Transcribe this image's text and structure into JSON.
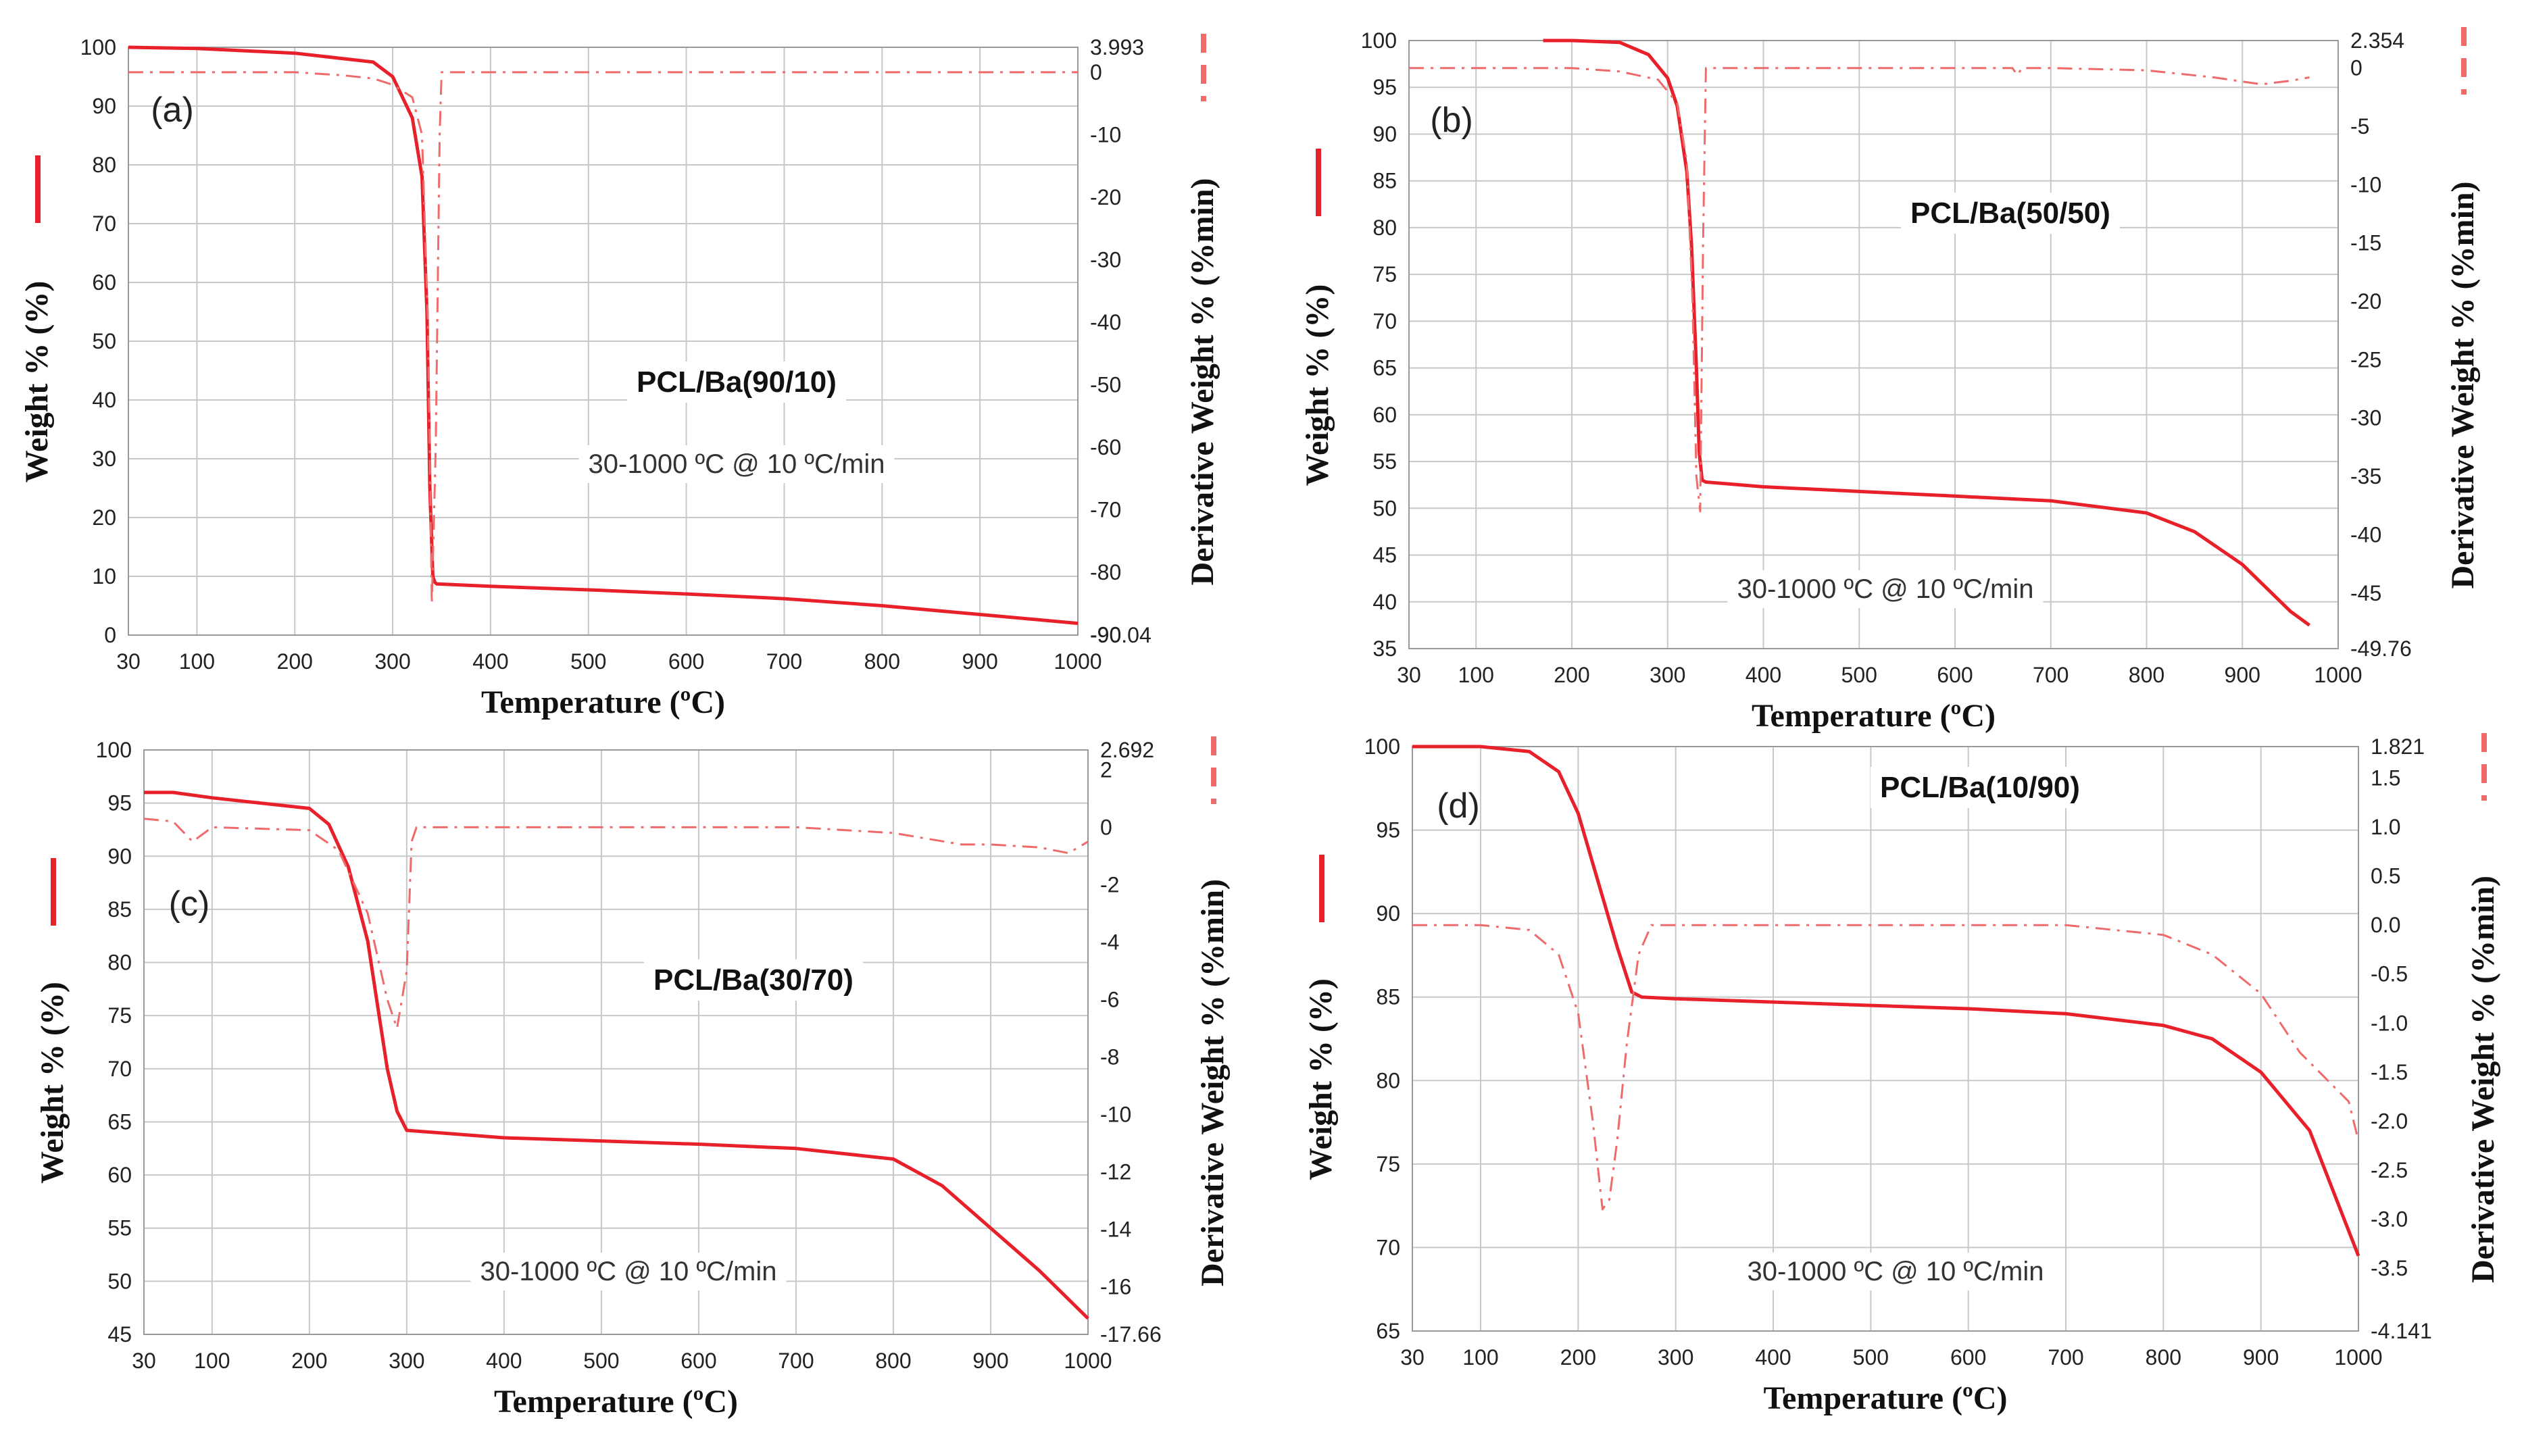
{
  "figure": {
    "colors": {
      "weight": "#e8202a",
      "derivative": "#ef6a6a",
      "grid": "#c8c8c8",
      "text": "#222222"
    }
  },
  "chart_data": [
    {
      "type": "line",
      "panel_label": "(a)",
      "title": "PCL/Ba(90/10)",
      "annotation": "30-1000 ºC @ 10 ºC/min",
      "xlabel": "Temperature (ºC)",
      "ylabel": "Weight % (%)",
      "y2label": "Derivative Weight % (%min)",
      "xlim": [
        30,
        1000
      ],
      "x_ticks": [
        "30",
        "100",
        "200",
        "300",
        "400",
        "500",
        "600",
        "700",
        "800",
        "900",
        "1000"
      ],
      "ylim": [
        0,
        100
      ],
      "y_ticks": [
        "0",
        "10",
        "20",
        "30",
        "40",
        "50",
        "60",
        "70",
        "80",
        "90",
        "100"
      ],
      "y2lim": [
        -90.04,
        3.993
      ],
      "y2_ticks": [
        "3.993",
        "0",
        "-10",
        "-20",
        "-30",
        "-40",
        "-50",
        "-60",
        "-70",
        "-80",
        "-90",
        "-90.04"
      ],
      "series": [
        {
          "name": "Weight %",
          "axis": "left",
          "style": "solid",
          "x": [
            30,
            100,
            200,
            280,
            300,
            320,
            330,
            335,
            338,
            341,
            343,
            345,
            400,
            500,
            600,
            700,
            800,
            900,
            1000
          ],
          "y": [
            100,
            99.8,
            99,
            97.5,
            95,
            88,
            78,
            55,
            25,
            10,
            9,
            8.7,
            8.3,
            7.7,
            7,
            6.2,
            5,
            3.5,
            2
          ]
        },
        {
          "name": "Derivative Weight %",
          "axis": "right",
          "style": "dashed",
          "x": [
            30,
            200,
            250,
            280,
            300,
            320,
            330,
            336,
            340,
            344,
            348,
            350,
            400,
            500,
            600,
            700,
            800,
            900,
            1000
          ],
          "y": [
            0,
            0,
            -0.5,
            -1,
            -2,
            -4,
            -10,
            -40,
            -85,
            -60,
            -10,
            0,
            0,
            0,
            0,
            0,
            0,
            0,
            0
          ]
        }
      ]
    },
    {
      "type": "line",
      "panel_label": "(b)",
      "title": "PCL/Ba(50/50)",
      "annotation": "30-1000 ºC @ 10 ºC/min",
      "xlabel": "Temperature (ºC)",
      "ylabel": "Weight % (%)",
      "y2label": "Derivative Weight % (%min)",
      "xlim": [
        30,
        1000
      ],
      "x_ticks": [
        "30",
        "100",
        "200",
        "300",
        "400",
        "500",
        "600",
        "700",
        "800",
        "900",
        "1000"
      ],
      "ylim": [
        35,
        100
      ],
      "y_ticks": [
        "35",
        "40",
        "45",
        "50",
        "55",
        "60",
        "65",
        "70",
        "75",
        "80",
        "85",
        "90",
        "95",
        "100"
      ],
      "y2lim": [
        -49.76,
        2.354
      ],
      "y2_ticks": [
        "2.354",
        "0",
        "-5",
        "-10",
        "-15",
        "-20",
        "-25",
        "-30",
        "-35",
        "-40",
        "-45",
        "-49.76"
      ],
      "series": [
        {
          "name": "Weight %",
          "axis": "left",
          "style": "solid",
          "x": [
            170,
            200,
            250,
            280,
            300,
            310,
            320,
            325,
            330,
            333,
            336,
            340,
            400,
            500,
            600,
            700,
            800,
            850,
            900,
            950,
            970
          ],
          "y": [
            100,
            100,
            99.8,
            98.5,
            96,
            93,
            86,
            78,
            65,
            56,
            53,
            52.8,
            52.3,
            51.8,
            51.3,
            50.8,
            49.5,
            47.5,
            44,
            39,
            37.5
          ]
        },
        {
          "name": "Derivative Weight %",
          "axis": "right",
          "style": "dashed",
          "x": [
            30,
            200,
            250,
            290,
            310,
            320,
            326,
            330,
            334,
            337,
            340,
            400,
            500,
            600,
            660,
            665,
            670,
            700,
            800,
            870,
            920,
            950,
            970
          ],
          "y": [
            0,
            0,
            -0.3,
            -1,
            -3,
            -8,
            -20,
            -35,
            -38,
            -15,
            0,
            0,
            0,
            0,
            0,
            -0.6,
            0,
            0,
            -0.2,
            -0.8,
            -1.4,
            -1.1,
            -0.8
          ]
        }
      ]
    },
    {
      "type": "line",
      "panel_label": "(c)",
      "title": "PCL/Ba(30/70)",
      "annotation": "30-1000 ºC @ 10 ºC/min",
      "xlabel": "Temperature (ºC)",
      "ylabel": "Weight % (%)",
      "y2label": "Derivative Weight % (%min)",
      "xlim": [
        30,
        1000
      ],
      "x_ticks": [
        "30",
        "100",
        "200",
        "300",
        "400",
        "500",
        "600",
        "700",
        "800",
        "900",
        "1000"
      ],
      "ylim": [
        45,
        100
      ],
      "y_ticks": [
        "45",
        "50",
        "55",
        "60",
        "65",
        "70",
        "75",
        "80",
        "85",
        "90",
        "95",
        "100"
      ],
      "y2lim": [
        -17.66,
        2.692
      ],
      "y2_ticks": [
        "2.692",
        "2",
        "0",
        "-2",
        "-4",
        "-6",
        "-8",
        "-10",
        "-12",
        "-14",
        "-16",
        "-17.66"
      ],
      "series": [
        {
          "name": "Weight %",
          "axis": "left",
          "style": "solid",
          "x": [
            30,
            60,
            100,
            200,
            220,
            240,
            260,
            270,
            280,
            290,
            300,
            400,
            500,
            600,
            700,
            800,
            850,
            900,
            950,
            1000
          ],
          "y": [
            96,
            96,
            95.5,
            94.5,
            93,
            89,
            82,
            76,
            70,
            66,
            64.2,
            63.5,
            63.2,
            62.9,
            62.5,
            61.5,
            59,
            55,
            51,
            46.5
          ]
        },
        {
          "name": "Derivative Weight %",
          "axis": "right",
          "style": "dashed",
          "x": [
            30,
            60,
            80,
            100,
            200,
            230,
            260,
            280,
            290,
            300,
            305,
            310,
            400,
            500,
            600,
            700,
            800,
            870,
            900,
            950,
            980,
            1000
          ],
          "y": [
            0.3,
            0.2,
            -0.5,
            0,
            -0.1,
            -0.8,
            -3,
            -6,
            -7,
            -5,
            -0.5,
            0,
            0,
            0,
            0,
            0,
            -0.2,
            -0.6,
            -0.6,
            -0.7,
            -0.9,
            -0.5
          ]
        }
      ]
    },
    {
      "type": "line",
      "panel_label": "(d)",
      "title": "PCL/Ba(10/90)",
      "annotation": "30-1000 ºC @ 10 ºC/min",
      "xlabel": "Temperature (ºC)",
      "ylabel": "Weight % (%)",
      "y2label": "Derivative Weight % (%min)",
      "xlim": [
        30,
        1000
      ],
      "x_ticks": [
        "30",
        "100",
        "200",
        "300",
        "400",
        "500",
        "600",
        "700",
        "800",
        "900",
        "1000"
      ],
      "ylim": [
        65,
        100
      ],
      "y_ticks": [
        "65",
        "70",
        "75",
        "80",
        "85",
        "90",
        "95",
        "100"
      ],
      "y2lim": [
        -4.141,
        1.821
      ],
      "y2_ticks": [
        "1.821",
        "1.5",
        "1.0",
        "0.5",
        "0.0",
        "-0.5",
        "-1.0",
        "-1.5",
        "-2.0",
        "-2.5",
        "-3.0",
        "-3.5",
        "-4.141"
      ],
      "series": [
        {
          "name": "Weight %",
          "axis": "left",
          "style": "solid",
          "x": [
            30,
            100,
            150,
            180,
            200,
            220,
            240,
            255,
            265,
            300,
            400,
            500,
            600,
            700,
            800,
            850,
            900,
            950,
            1000
          ],
          "y": [
            100,
            100,
            99.7,
            98.5,
            96,
            92,
            88,
            85.3,
            85,
            84.9,
            84.7,
            84.5,
            84.3,
            84,
            83.3,
            82.5,
            80.5,
            77,
            69.5
          ]
        },
        {
          "name": "Derivative Weight %",
          "axis": "right",
          "style": "dashed",
          "x": [
            30,
            40,
            100,
            150,
            180,
            200,
            215,
            225,
            232,
            240,
            250,
            262,
            275,
            300,
            400,
            500,
            600,
            700,
            800,
            850,
            900,
            940,
            970,
            990,
            1000
          ],
          "y": [
            0.0,
            0.0,
            0.0,
            -0.05,
            -0.3,
            -0.9,
            -2,
            -2.9,
            -2.8,
            -2.2,
            -1.2,
            -0.3,
            0.0,
            0.0,
            0.0,
            0.0,
            0.0,
            0.0,
            -0.1,
            -0.3,
            -0.7,
            -1.3,
            -1.6,
            -1.8,
            -2.2
          ]
        }
      ]
    }
  ]
}
